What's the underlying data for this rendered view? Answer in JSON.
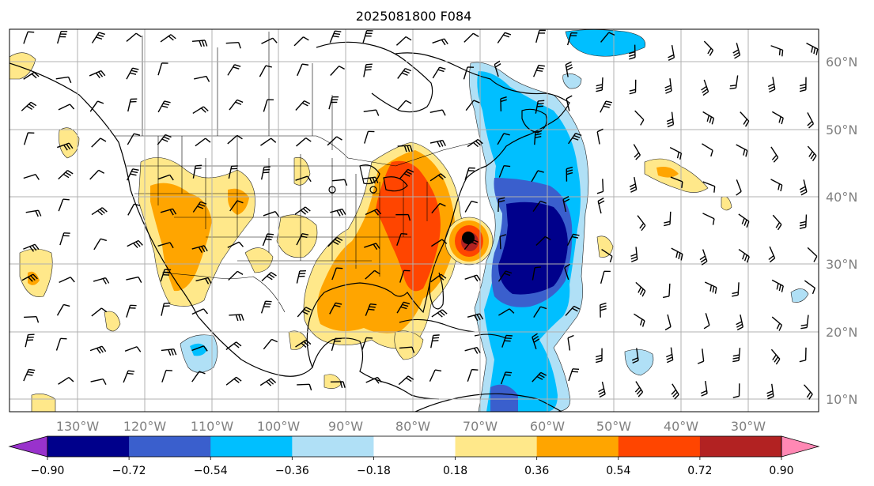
{
  "title": "2025081800 F084",
  "map": {
    "lon_labels": [
      "130°W",
      "120°W",
      "110°W",
      "100°W",
      "90°W",
      "80°W",
      "70°W",
      "60°W",
      "50°W",
      "40°W",
      "30°W"
    ],
    "lat_labels": [
      "60°N",
      "50°N",
      "40°N",
      "30°N",
      "20°N",
      "10°N"
    ],
    "grid_color": "#b0b0b0",
    "storm_marker": "hurricane-center-dot"
  },
  "colorbar": {
    "ticks": [
      "−0.90",
      "−0.72",
      "−0.54",
      "−0.36",
      "−0.18",
      "0.18",
      "0.36",
      "0.54",
      "0.72",
      "0.90"
    ],
    "colors": [
      "#9932cc",
      "#00008b",
      "#3a5fcd",
      "#00bfff",
      "#b0e0f6",
      "#ffffff",
      "#ffe88a",
      "#ffa500",
      "#ff4500",
      "#b22222",
      "#ff88b4"
    ]
  }
}
